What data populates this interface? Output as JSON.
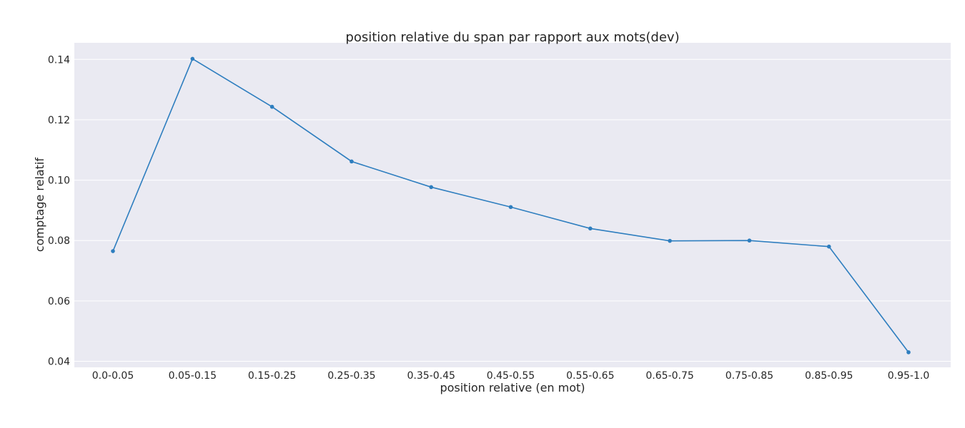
{
  "chart_data": {
    "type": "line",
    "title": "position relative du span par rapport aux mots(dev)",
    "xlabel": "position relative (en mot)",
    "ylabel": "comptage relatif",
    "categories": [
      "0.0-0.05",
      "0.05-0.15",
      "0.15-0.25",
      "0.25-0.35",
      "0.35-0.45",
      "0.45-0.55",
      "0.55-0.65",
      "0.65-0.75",
      "0.75-0.85",
      "0.85-0.95",
      "0.95-1.0"
    ],
    "series": [
      {
        "values": [
          0.0765,
          0.1402,
          0.1243,
          0.1062,
          0.0977,
          0.0911,
          0.084,
          0.0799,
          0.08,
          0.078,
          0.043
        ]
      }
    ],
    "ylim": [
      0.038,
      0.1455
    ],
    "yticks": [
      "0.04",
      "0.06",
      "0.08",
      "0.10",
      "0.12",
      "0.14"
    ],
    "grid": true,
    "colors": {
      "line": "#2e7ebf",
      "plot_background": "#eaeaf2",
      "grid": "#ffffff"
    }
  }
}
